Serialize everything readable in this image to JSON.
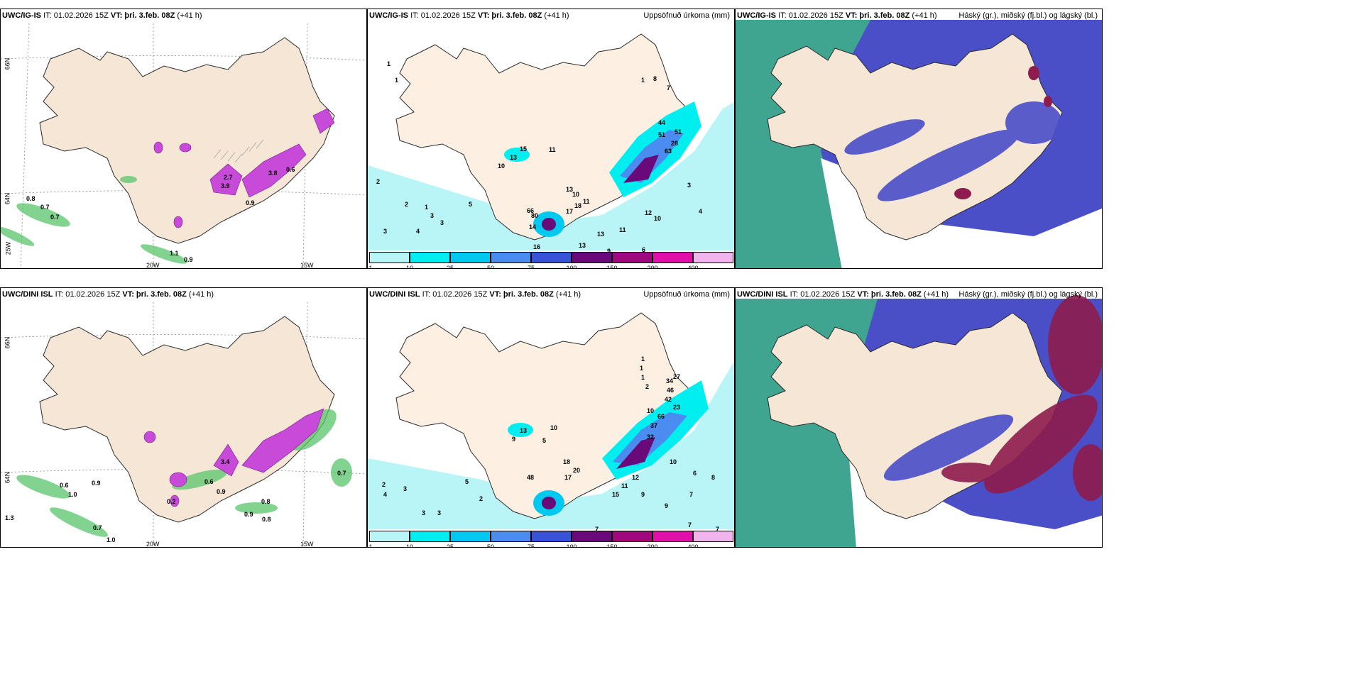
{
  "panels": [
    {
      "id": "p1",
      "model": "UWC/IG-IS",
      "it": "IT: 01.02.2026 15Z",
      "vt_label": "VT:",
      "vt": "þri. 3.feb. 08Z",
      "lead": "(+41 h)",
      "right": ""
    },
    {
      "id": "p2",
      "model": "UWC/IG-IS",
      "it": "IT: 01.02.2026 15Z",
      "vt_label": "VT:",
      "vt": "þri. 3.feb. 08Z",
      "lead": "(+41 h)",
      "right": "Uppsöfnuð úrkoma (mm)"
    },
    {
      "id": "p3",
      "model": "UWC/IG-IS",
      "it": "IT: 01.02.2026 15Z",
      "vt_label": "VT:",
      "vt": "þri. 3.feb. 08Z",
      "lead": "(+41 h)",
      "right": "Háský (gr.), miðský (fj.bl.) og lágský (bl.)"
    },
    {
      "id": "p4",
      "model": "UWC/DINI ISL",
      "it": "IT: 01.02.2026 15Z",
      "vt_label": "VT:",
      "vt": "þri. 3.feb. 08Z",
      "lead": "(+41 h)",
      "right": ""
    },
    {
      "id": "p5",
      "model": "UWC/DINI ISL",
      "it": "IT: 01.02.2026 15Z",
      "vt_label": "VT:",
      "vt": "þri. 3.feb. 08Z",
      "lead": "(+41 h)",
      "right": "Uppsöfnuð úrkoma (mm)"
    },
    {
      "id": "p6",
      "model": "UWC/DINI ISL",
      "it": "IT: 01.02.2026 15Z",
      "vt_label": "VT:",
      "vt": "þri. 3.feb. 08Z",
      "lead": "(+41 h)",
      "right": "Háský (gr.), miðský (fj.bl.) og lágský (bl.)"
    }
  ],
  "axis_labels": {
    "lat66": "66N",
    "lat64": "64N",
    "lon20": "20W",
    "lon15": "15W",
    "lon25": "25W"
  },
  "legend": {
    "ticks": [
      "1",
      "10",
      "25",
      "50",
      "75",
      "100",
      "150",
      "200",
      "400"
    ],
    "colors": [
      "#b9f5f7",
      "#00eef0",
      "#00c8ee",
      "#4a8cf0",
      "#3a52d8",
      "#6a0a7a",
      "#a0087e",
      "#e010a8",
      "#f2b4ec"
    ]
  },
  "colors": {
    "land": "#f5e6d6",
    "sea": "#ffffff",
    "coast": "#2a2a2a",
    "precip": "#c84ad8",
    "precip_light": "#e69ae9",
    "green": "#58c56a",
    "cyan": "#66e3ef",
    "cloud_blue": "#4a4fc8",
    "cloud_red": "#8e1c4e",
    "cloud_green": "#3fae8a"
  },
  "p1_values": [
    "0.8",
    "0.7",
    "0.7",
    "2.7",
    "3.9",
    "3.8",
    "0.6",
    "0.9",
    "1.1",
    "0.9"
  ],
  "p4_values": [
    "0.6",
    "1.0",
    "0.9",
    "3.4",
    "0.6",
    "0.9",
    "0.2",
    "0.8",
    "0.9",
    "0.8",
    "0.7",
    "1.0",
    "1.3",
    "0.7"
  ],
  "p2_values": [
    "1",
    "1",
    "1",
    "15",
    "13",
    "11",
    "10",
    "5",
    "2",
    "3",
    "4",
    "3",
    "3",
    "2",
    "1",
    "44",
    "51",
    "51",
    "63",
    "28",
    "13",
    "10",
    "17",
    "18",
    "11",
    "66",
    "80",
    "14",
    "13",
    "16",
    "9",
    "10",
    "12",
    "11",
    "13",
    "3",
    "4",
    "7",
    "8",
    "6"
  ],
  "p5_values": [
    "1",
    "1",
    "1",
    "2",
    "13",
    "10",
    "9",
    "5",
    "5",
    "2",
    "3",
    "4",
    "3",
    "3",
    "2",
    "34",
    "27",
    "46",
    "42",
    "23",
    "66",
    "37",
    "32",
    "10",
    "48",
    "17",
    "20",
    "18",
    "15",
    "11",
    "12",
    "9",
    "10",
    "8",
    "7",
    "6",
    "9",
    "7",
    "7",
    "7"
  ]
}
